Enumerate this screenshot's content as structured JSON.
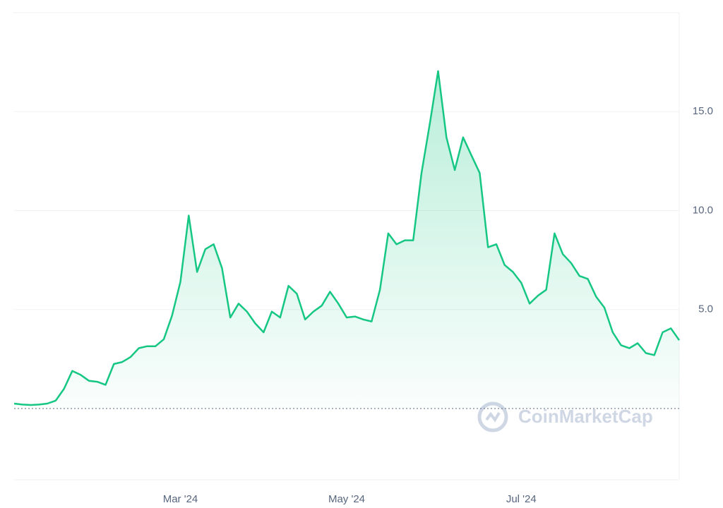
{
  "chart_data": {
    "type": "line",
    "watermark": "CoinMarketCap",
    "color": "#16c784",
    "categories": [
      null,
      null,
      null,
      null,
      null,
      null,
      null,
      null,
      null,
      null,
      null,
      null,
      null,
      null,
      null,
      null,
      null,
      null,
      null,
      null,
      "Mar '24",
      null,
      null,
      null,
      null,
      null,
      null,
      null,
      null,
      null,
      null,
      null,
      null,
      null,
      null,
      null,
      null,
      null,
      null,
      null,
      "May '24",
      null,
      null,
      null,
      null,
      null,
      null,
      null,
      null,
      null,
      null,
      null,
      null,
      null,
      null,
      null,
      null,
      null,
      null,
      null,
      null,
      "Jul '24",
      null,
      null,
      null,
      null,
      null,
      null,
      null,
      null,
      null,
      null,
      null,
      null,
      null,
      null,
      null,
      null,
      null,
      null,
      null
    ],
    "values": [
      0.25,
      0.2,
      0.18,
      0.2,
      0.25,
      0.4,
      1.0,
      1.9,
      1.7,
      1.4,
      1.35,
      1.2,
      2.25,
      2.35,
      2.6,
      3.05,
      3.15,
      3.15,
      3.5,
      4.7,
      6.4,
      9.75,
      6.9,
      8.05,
      8.3,
      7.1,
      4.6,
      5.3,
      4.9,
      4.3,
      3.85,
      4.9,
      4.6,
      6.2,
      5.8,
      4.5,
      4.9,
      5.2,
      5.9,
      5.3,
      4.6,
      4.65,
      4.5,
      4.4,
      6.0,
      8.85,
      8.3,
      8.5,
      8.5,
      11.9,
      14.4,
      17.05,
      13.7,
      12.05,
      13.7,
      12.8,
      11.9,
      8.15,
      8.3,
      7.25,
      6.9,
      6.35,
      5.3,
      5.7,
      6.0,
      8.85,
      7.8,
      7.35,
      6.7,
      6.55,
      5.65,
      5.1,
      3.85,
      3.2,
      3.05,
      3.3,
      2.8,
      2.7,
      3.85,
      4.05,
      3.45
    ],
    "ylim": [
      -3.6,
      20
    ],
    "yticks": [
      {
        "value": 5,
        "label": "5.0"
      },
      {
        "value": 10,
        "label": "10.0"
      },
      {
        "value": 15,
        "label": "15.0"
      }
    ],
    "grid": true
  }
}
